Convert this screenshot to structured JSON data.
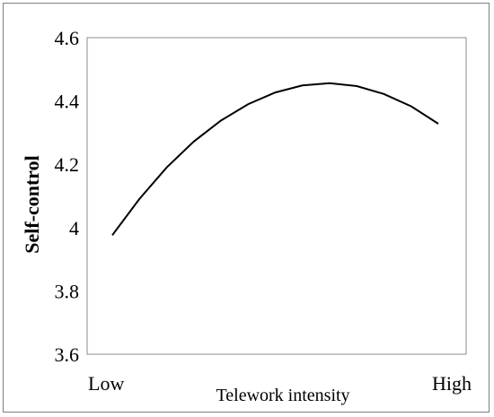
{
  "chart_data": {
    "type": "line",
    "title": "",
    "xlabel": "Telework intensity",
    "ylabel": "Self-control",
    "x_tick_labels": [
      "Low",
      "High"
    ],
    "y_tick_labels": [
      "3.6",
      "3.8",
      "4",
      "4.2",
      "4.4",
      "4.6"
    ],
    "ylim": [
      3.6,
      4.6
    ],
    "xlim": [
      0,
      1
    ],
    "grid": false,
    "legend": "none",
    "line_color": "#000000",
    "series": [
      {
        "x": [
          0,
          0.083,
          0.167,
          0.25,
          0.333,
          0.417,
          0.5,
          0.583,
          0.667,
          0.75,
          0.833,
          0.917,
          1
        ],
        "values": [
          3.976,
          4.09,
          4.19,
          4.272,
          4.338,
          4.39,
          4.427,
          4.449,
          4.456,
          4.447,
          4.422,
          4.383,
          4.328
        ]
      }
    ]
  }
}
